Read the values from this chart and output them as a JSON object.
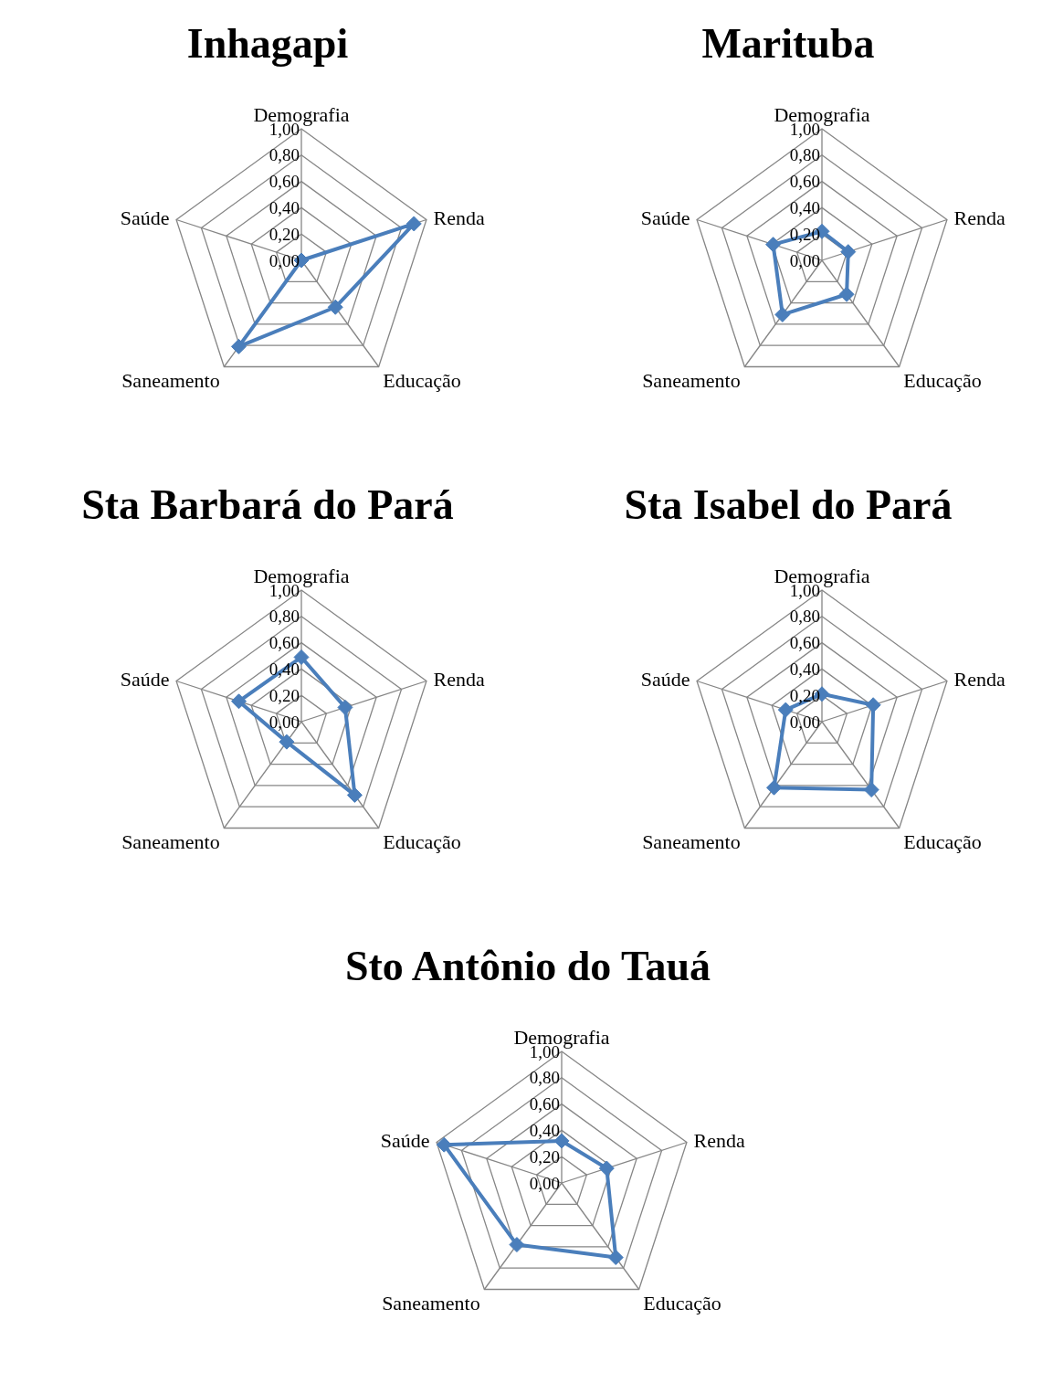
{
  "chart_data": [
    {
      "type": "radar",
      "title": "Inhagapi",
      "categories": [
        "Demografia",
        "Renda",
        "Educação",
        "Saneamento",
        "Saúde"
      ],
      "series": [
        {
          "color": "#4a7ebb",
          "values": [
            0,
            0.9,
            0.44,
            0.81,
            0
          ]
        }
      ],
      "ylim": [
        0,
        1
      ],
      "yticks": [
        {
          "value": 0,
          "label": "0,00"
        },
        {
          "value": 0.2,
          "label": "0,20"
        },
        {
          "value": 0.4,
          "label": "0,40"
        },
        {
          "value": 0.6,
          "label": "0,60"
        },
        {
          "value": 0.8,
          "label": "0,80"
        },
        {
          "value": 1,
          "label": "1,00"
        }
      ],
      "marker": "diamond",
      "line_style": "solid",
      "grid": true
    },
    {
      "type": "radar",
      "title": "Marituba",
      "categories": [
        "Demografia",
        "Renda",
        "Educação",
        "Saneamento",
        "Saúde"
      ],
      "series": [
        {
          "color": "#4a7ebb",
          "values": [
            0.22,
            0.21,
            0.32,
            0.51,
            0.39
          ]
        }
      ],
      "ylim": [
        0,
        1
      ],
      "yticks": [
        {
          "value": 0,
          "label": "0,00"
        },
        {
          "value": 0.2,
          "label": "0,20"
        },
        {
          "value": 0.4,
          "label": "0,40"
        },
        {
          "value": 0.6,
          "label": "0,60"
        },
        {
          "value": 0.8,
          "label": "0,80"
        },
        {
          "value": 1,
          "label": "1,00"
        }
      ],
      "marker": "diamond",
      "line_style": "solid",
      "grid": true
    },
    {
      "type": "radar",
      "title": "Sta Barbará do Pará",
      "categories": [
        "Demografia",
        "Renda",
        "Educação",
        "Saneamento",
        "Saúde"
      ],
      "series": [
        {
          "color": "#4a7ebb",
          "values": [
            0.49,
            0.35,
            0.69,
            0.19,
            0.5
          ]
        }
      ],
      "ylim": [
        0,
        1
      ],
      "yticks": [
        {
          "value": 0,
          "label": "0,00"
        },
        {
          "value": 0.2,
          "label": "0,20"
        },
        {
          "value": 0.4,
          "label": "0,40"
        },
        {
          "value": 0.6,
          "label": "0,60"
        },
        {
          "value": 0.8,
          "label": "0,80"
        },
        {
          "value": 1,
          "label": "1,00"
        }
      ],
      "marker": "diamond",
      "line_style": "solid",
      "grid": true
    },
    {
      "type": "radar",
      "title": "Sta Isabel do Pará",
      "categories": [
        "Demografia",
        "Renda",
        "Educação",
        "Saneamento",
        "Saúde"
      ],
      "series": [
        {
          "color": "#4a7ebb",
          "values": [
            0.21,
            0.41,
            0.64,
            0.62,
            0.29
          ]
        }
      ],
      "ylim": [
        0,
        1
      ],
      "yticks": [
        {
          "value": 0,
          "label": "0,00"
        },
        {
          "value": 0.2,
          "label": "0,20"
        },
        {
          "value": 0.4,
          "label": "0,40"
        },
        {
          "value": 0.6,
          "label": "0,60"
        },
        {
          "value": 0.8,
          "label": "0,80"
        },
        {
          "value": 1,
          "label": "1,00"
        }
      ],
      "marker": "diamond",
      "line_style": "solid",
      "grid": true
    },
    {
      "type": "radar",
      "title": "Sto Antônio do Tauá",
      "categories": [
        "Demografia",
        "Renda",
        "Educação",
        "Saneamento",
        "Saúde"
      ],
      "series": [
        {
          "color": "#4a7ebb",
          "values": [
            0.32,
            0.36,
            0.7,
            0.58,
            0.94
          ]
        }
      ],
      "ylim": [
        0,
        1
      ],
      "yticks": [
        {
          "value": 0,
          "label": "0,00"
        },
        {
          "value": 0.2,
          "label": "0,20"
        },
        {
          "value": 0.4,
          "label": "0,40"
        },
        {
          "value": 0.6,
          "label": "0,60"
        },
        {
          "value": 0.8,
          "label": "0,80"
        },
        {
          "value": 1,
          "label": "1,00"
        }
      ],
      "marker": "diamond",
      "line_style": "solid",
      "grid": true
    }
  ]
}
